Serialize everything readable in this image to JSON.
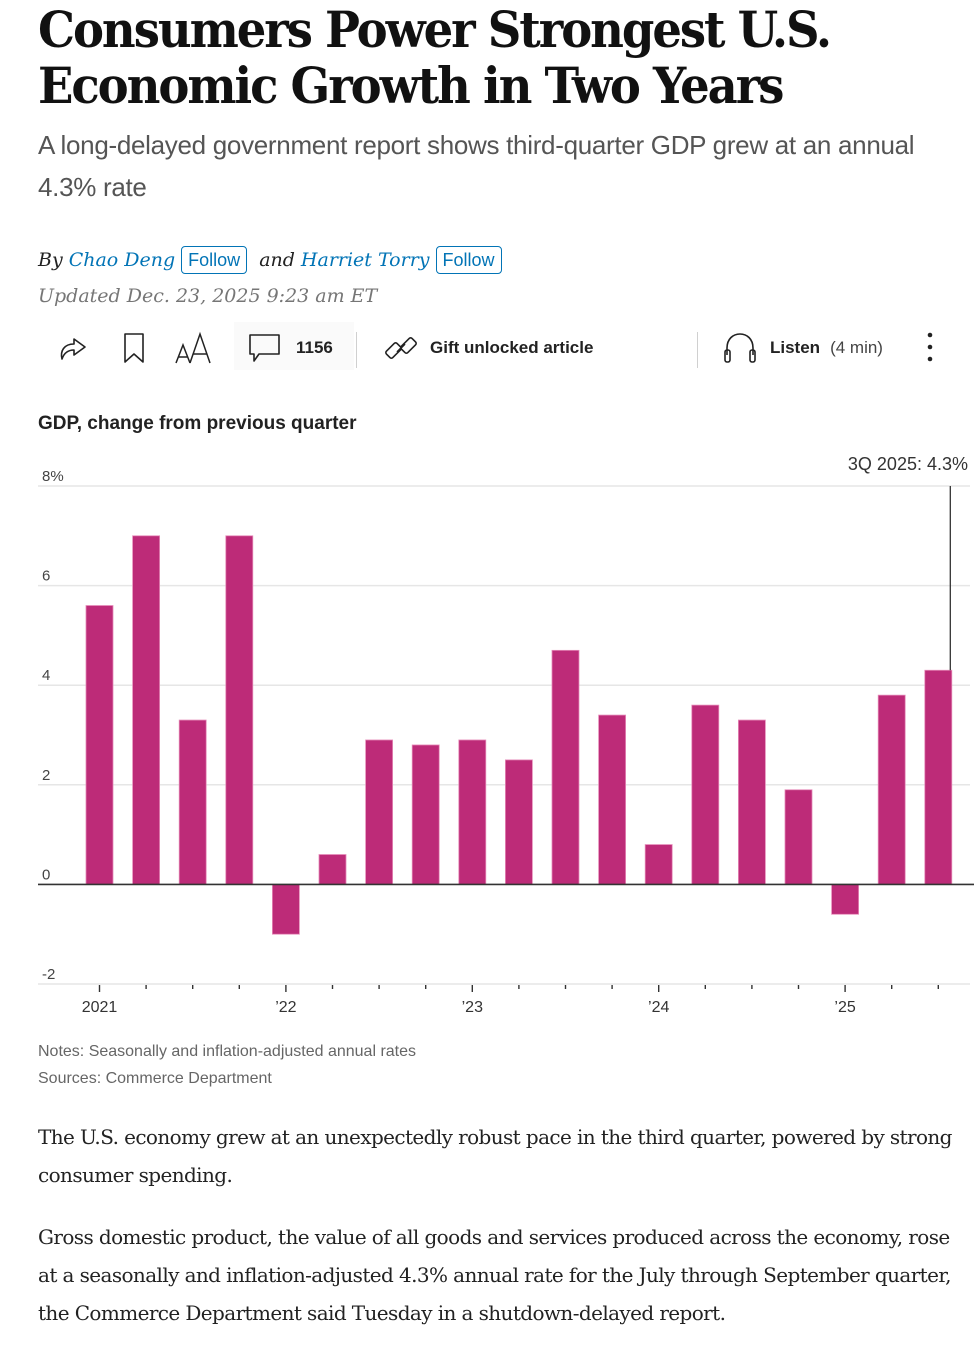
{
  "article": {
    "headline": "Consumers Power Strongest U.S. Economic Growth in Two Years",
    "dek": "A long-delayed government report shows third-quarter GDP grew at an annual 4.3% rate",
    "byline": {
      "prefix": "By",
      "authors": [
        {
          "name": "Chao Deng",
          "follow_label": "Follow"
        },
        {
          "name": "Harriet Torry",
          "follow_label": "Follow"
        }
      ],
      "joiner": "and"
    },
    "updated": "Updated Dec. 23, 2025 9:23 am ET"
  },
  "toolbar": {
    "share_icon": "share-arrow-icon",
    "bookmark_icon": "bookmark-icon",
    "text_size_icon": "text-size-icon",
    "comments_icon": "comment-bubble-icon",
    "comments_count": "1156",
    "gift_icon": "link-icon",
    "gift_label": "Gift unlocked article",
    "listen_icon": "headphones-icon",
    "listen_label": "Listen",
    "listen_duration": "(4 min)",
    "more_icon": "more-vertical-icon"
  },
  "colors": {
    "bar": "#bd2b78",
    "link": "#0274b6",
    "gridline": "#e6e6e6",
    "axis": "#333333"
  },
  "chart_data": {
    "type": "bar",
    "title": "GDP, change from previous quarter",
    "xlabel": "",
    "ylabel": "",
    "categories": [
      "1Q 2021",
      "2Q 2021",
      "3Q 2021",
      "4Q 2021",
      "1Q 2022",
      "2Q 2022",
      "3Q 2022",
      "4Q 2022",
      "1Q 2023",
      "2Q 2023",
      "3Q 2023",
      "4Q 2023",
      "1Q 2024",
      "2Q 2024",
      "3Q 2024",
      "4Q 2024",
      "1Q 2025",
      "2Q 2025",
      "3Q 2025"
    ],
    "values": [
      5.6,
      7.0,
      3.3,
      7.0,
      -1.0,
      0.6,
      2.9,
      2.8,
      2.9,
      2.5,
      4.7,
      3.4,
      0.8,
      3.6,
      3.3,
      1.9,
      -0.6,
      3.8,
      4.3
    ],
    "ylim": [
      -2,
      8
    ],
    "yticks": [
      {
        "value": 8,
        "label": "8%"
      },
      {
        "value": 6,
        "label": "6"
      },
      {
        "value": 4,
        "label": "4"
      },
      {
        "value": 2,
        "label": "2"
      },
      {
        "value": 0,
        "label": "0"
      },
      {
        "value": -2,
        "label": "-2"
      }
    ],
    "xtick_labels": [
      {
        "index": 0,
        "label": "2021"
      },
      {
        "index": 4,
        "label": "’22"
      },
      {
        "index": 8,
        "label": "’23"
      },
      {
        "index": 12,
        "label": "’24"
      },
      {
        "index": 16,
        "label": "’25"
      }
    ],
    "annotation": {
      "index": 18,
      "label": "3Q 2025: 4.3%"
    },
    "grid": true,
    "legend": "none",
    "notes": "Notes: Seasonally and inflation-adjusted annual rates",
    "sources": "Sources: Commerce Department"
  },
  "body": {
    "paragraphs": [
      "The U.S. economy grew at an unexpectedly robust pace in the third quarter, powered by strong consumer spending.",
      "Gross domestic product, the value of all goods and services produced across the economy, rose at a seasonally and inflation-adjusted 4.3% annual rate for the July through September quarter, the Commerce Department said Tuesday in a shutdown-delayed report."
    ]
  }
}
